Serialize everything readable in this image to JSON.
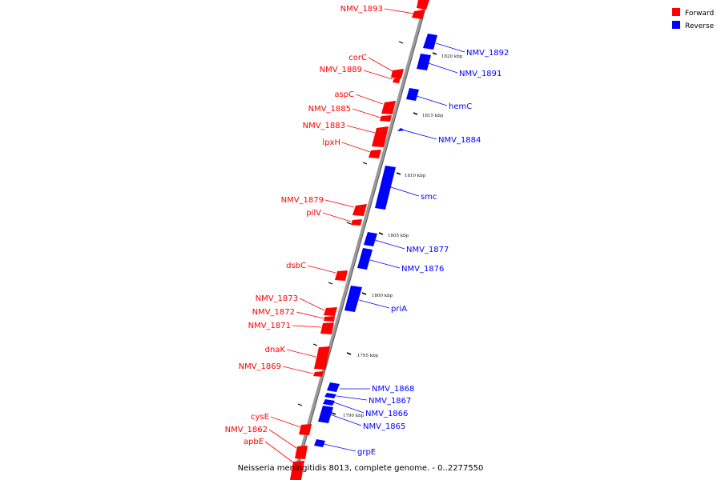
{
  "title": "Neisseria meningitidis 8013, complete genome. - 0..2277550",
  "colors": {
    "forward": "#ff0000",
    "reverse": "#0000ff",
    "backbone": "#888888"
  },
  "legend": [
    {
      "label": "Forward",
      "color": "#ff0000"
    },
    {
      "label": "Reverse",
      "color": "#0000ff"
    }
  ],
  "ticks": [
    "1820 kbp",
    "1815 kbp",
    "1810 kbp",
    "1805 kbp",
    "1800 kbp",
    "1795 kbp",
    "1790 kbp"
  ],
  "forward_labels": [
    "NMV_1893",
    "corC",
    "NMV_1889",
    "aspC",
    "NMV_1885",
    "NMV_1883",
    "lpxH",
    "NMV_1879",
    "pilV",
    "dsbC",
    "NMV_1873",
    "NMV_1872",
    "NMV_1871",
    "dnaK",
    "NMV_1869",
    "cysE",
    "NMV_1862",
    "apbE"
  ],
  "reverse_labels": [
    "NMV_1892",
    "NMV_1891",
    "hemC",
    "NMV_1884",
    "smc",
    "NMV_1877",
    "NMV_1876",
    "priA",
    "NMV_1868",
    "NMV_1867",
    "NMV_1866",
    "NMV_1865",
    "grpE"
  ]
}
